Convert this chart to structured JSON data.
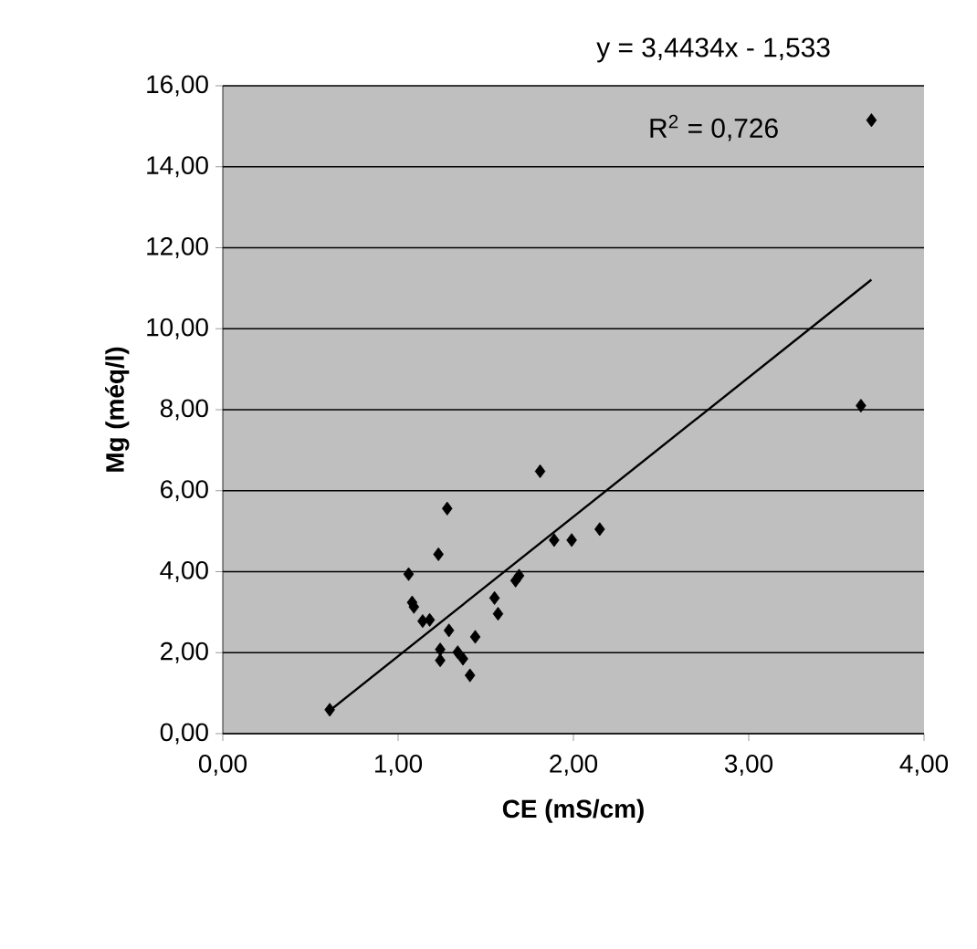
{
  "chart_data": {
    "type": "scatter",
    "xlabel": "CE (mS/cm)",
    "ylabel": "Mg (méq/l)",
    "annotations": [
      "y = 3,4434x - 1,533",
      "R$^{2}$ = 0,726"
    ],
    "xlim": [
      0,
      4
    ],
    "ylim": [
      0,
      16
    ],
    "xticks": [
      {
        "value": 0,
        "label": "0,00"
      },
      {
        "value": 1,
        "label": "1,00"
      },
      {
        "value": 2,
        "label": "2,00"
      },
      {
        "value": 3,
        "label": "3,00"
      },
      {
        "value": 4,
        "label": "4,00"
      }
    ],
    "yticks": [
      {
        "value": 0,
        "label": "0,00"
      },
      {
        "value": 2,
        "label": "2,00"
      },
      {
        "value": 4,
        "label": "4,00"
      },
      {
        "value": 6,
        "label": "6,00"
      },
      {
        "value": 8,
        "label": "8,00"
      },
      {
        "value": 10,
        "label": "10,00"
      },
      {
        "value": 12,
        "label": "12,00"
      },
      {
        "value": 14,
        "label": "14,00"
      },
      {
        "value": 16,
        "label": "16,00"
      }
    ],
    "grid": "y",
    "marker": "diamond",
    "series": [
      {
        "color": "#000000",
        "x": [
          0.61,
          1.06,
          1.08,
          1.09,
          1.14,
          1.18,
          1.23,
          1.28,
          1.29,
          1.24,
          1.24,
          1.34,
          1.37,
          1.41,
          1.44,
          1.55,
          1.57,
          1.67,
          1.69,
          1.81,
          1.89,
          1.99,
          2.15,
          3.64,
          3.7
        ],
        "values": [
          0.59,
          3.94,
          3.24,
          3.13,
          2.78,
          2.81,
          4.43,
          5.56,
          2.55,
          2.08,
          1.81,
          2.01,
          1.85,
          1.44,
          2.39,
          3.35,
          2.96,
          3.78,
          3.9,
          6.48,
          4.78,
          4.78,
          5.05,
          8.1,
          15.15
        ]
      },
      {
        "type": "line",
        "color": "#000000",
        "marker": "none",
        "x": [
          0.61,
          3.7
        ],
        "values": [
          0.57,
          11.21
        ]
      }
    ]
  }
}
